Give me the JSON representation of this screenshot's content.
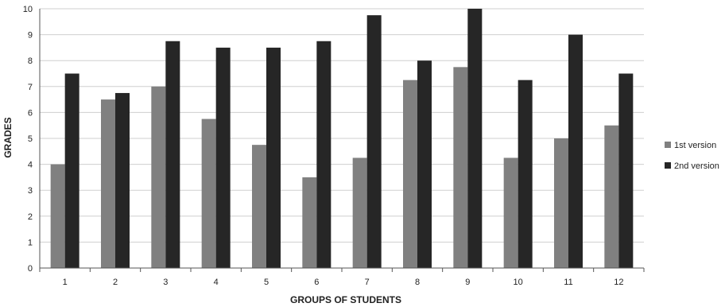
{
  "chart_data": {
    "type": "bar",
    "categories": [
      "1",
      "2",
      "3",
      "4",
      "5",
      "6",
      "7",
      "8",
      "9",
      "10",
      "11",
      "12"
    ],
    "series": [
      {
        "name": "1st version",
        "color": "#808080",
        "values": [
          4,
          6.5,
          7,
          5.75,
          4.75,
          3.5,
          4.25,
          7.25,
          7.75,
          4.25,
          5,
          5.5
        ]
      },
      {
        "name": "2nd version",
        "color": "#262626",
        "values": [
          7.5,
          6.75,
          8.75,
          8.5,
          8.5,
          8.75,
          9.75,
          8,
          10,
          7.25,
          9,
          7.5
        ]
      }
    ],
    "title": "",
    "xlabel": "GROUPS OF STUDENTS",
    "ylabel": "GRADES",
    "ylim": [
      0,
      10
    ],
    "yticks": [
      "0",
      "1",
      "2",
      "3",
      "4",
      "5",
      "6",
      "7",
      "8",
      "9",
      "10"
    ],
    "grid": true,
    "legend_position": "right"
  }
}
